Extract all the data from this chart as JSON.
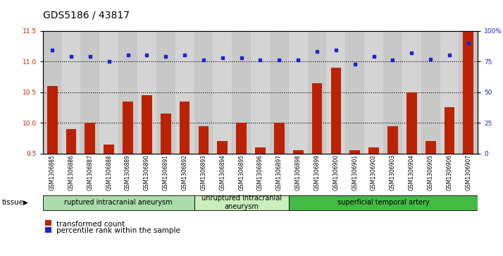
{
  "title": "GDS5186 / 43817",
  "samples": [
    "GSM1306885",
    "GSM1306886",
    "GSM1306887",
    "GSM1306888",
    "GSM1306889",
    "GSM1306890",
    "GSM1306891",
    "GSM1306892",
    "GSM1306893",
    "GSM1306894",
    "GSM1306895",
    "GSM1306896",
    "GSM1306897",
    "GSM1306898",
    "GSM1306899",
    "GSM1306900",
    "GSM1306901",
    "GSM1306902",
    "GSM1306903",
    "GSM1306904",
    "GSM1306905",
    "GSM1306906",
    "GSM1306907"
  ],
  "bar_values": [
    10.6,
    9.9,
    10.0,
    9.65,
    10.35,
    10.45,
    10.15,
    10.35,
    9.95,
    9.7,
    10.0,
    9.6,
    10.0,
    9.55,
    10.65,
    10.9,
    9.55,
    9.6,
    9.95,
    10.5,
    9.7,
    10.25,
    11.5
  ],
  "percentile_values": [
    84,
    79,
    79,
    75,
    80,
    80,
    79,
    80,
    76,
    78,
    78,
    76,
    76,
    76,
    83,
    84,
    73,
    79,
    76,
    82,
    77,
    80,
    90
  ],
  "bar_color": "#bb2200",
  "percentile_color": "#2222cc",
  "ylim_left": [
    9.5,
    11.5
  ],
  "ylim_right": [
    0,
    100
  ],
  "yticks_left": [
    9.5,
    10.0,
    10.5,
    11.0,
    11.5
  ],
  "yticks_right": [
    0,
    25,
    50,
    75,
    100
  ],
  "ytick_labels_right": [
    "0",
    "25",
    "50",
    "75",
    "100%"
  ],
  "grid_values": [
    10.0,
    10.5,
    11.0
  ],
  "group_starts": [
    0,
    8,
    13
  ],
  "group_ends": [
    8,
    13,
    23
  ],
  "group_labels": [
    "ruptured intracranial aneurysm",
    "unruptured intracranial\naneurysm",
    "superficial temporal artery"
  ],
  "group_colors": [
    "#aaddaa",
    "#cceebb",
    "#44bb44"
  ],
  "tissue_label": "tissue",
  "legend_bar_label": "transformed count",
  "legend_dot_label": "percentile rank within the sample",
  "title_fontsize": 10,
  "tick_fontsize": 6.5,
  "background_color": "#d4d4d4"
}
